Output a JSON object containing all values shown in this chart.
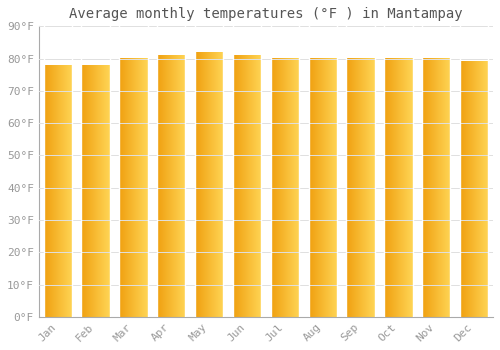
{
  "title": "Average monthly temperatures (°F ) in Mantampay",
  "months": [
    "Jan",
    "Feb",
    "Mar",
    "Apr",
    "May",
    "Jun",
    "Jul",
    "Aug",
    "Sep",
    "Oct",
    "Nov",
    "Dec"
  ],
  "values": [
    78,
    78,
    80,
    81,
    82,
    81,
    80,
    80,
    80,
    80,
    80,
    79
  ],
  "bar_color_left": "#F0A010",
  "bar_color_right": "#FFD060",
  "bar_edge_color": "#FFFFFF",
  "background_color": "#FFFFFF",
  "plot_bg_color": "#FFFFFF",
  "grid_color": "#E0E0E0",
  "title_fontsize": 10,
  "tick_fontsize": 8,
  "tick_color": "#999999",
  "title_color": "#555555",
  "ylim": [
    0,
    90
  ],
  "yticks": [
    0,
    10,
    20,
    30,
    40,
    50,
    60,
    70,
    80,
    90
  ],
  "ytick_labels": [
    "0°F",
    "10°F",
    "20°F",
    "30°F",
    "40°F",
    "50°F",
    "60°F",
    "70°F",
    "80°F",
    "90°F"
  ]
}
